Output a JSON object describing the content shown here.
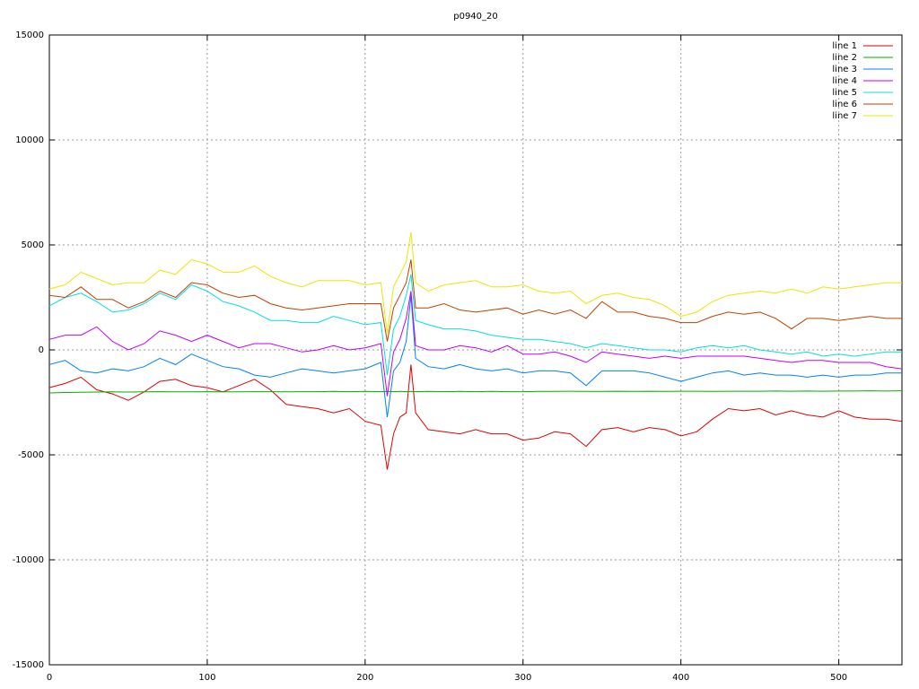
{
  "chart_data": {
    "type": "line",
    "title": "p0940_20",
    "x": [
      0,
      10,
      20,
      30,
      40,
      50,
      60,
      70,
      80,
      90,
      100,
      110,
      120,
      130,
      140,
      150,
      160,
      170,
      180,
      190,
      200,
      210,
      214,
      218,
      222,
      226,
      229,
      232,
      240,
      250,
      260,
      270,
      280,
      290,
      300,
      310,
      320,
      330,
      340,
      350,
      360,
      370,
      380,
      390,
      400,
      410,
      420,
      430,
      440,
      450,
      460,
      470,
      480,
      490,
      500,
      510,
      520,
      530,
      540
    ],
    "xlim": [
      0,
      540
    ],
    "xticks": [
      0,
      100,
      200,
      300,
      400,
      500
    ],
    "ylim": [
      -15000,
      15000
    ],
    "yticks": [
      -15000,
      -10000,
      -5000,
      0,
      5000,
      10000,
      15000
    ],
    "grid": true,
    "legend": "top-right",
    "series": [
      {
        "name": "line 1",
        "color": "#e00000",
        "values": [
          -1800,
          -1600,
          -1300,
          -1900,
          -2100,
          -2400,
          -2000,
          -1500,
          -1400,
          -1700,
          -1800,
          -2000,
          -1700,
          -1400,
          -1900,
          -2600,
          -2700,
          -2800,
          -3000,
          -2800,
          -3400,
          -3600,
          -5700,
          -4000,
          -3200,
          -3000,
          -700,
          -3000,
          -3800,
          -3900,
          -4000,
          -3800,
          -4000,
          -4000,
          -4300,
          -4200,
          -3900,
          -4000,
          -4600,
          -3800,
          -3700,
          -3900,
          -3700,
          -3800,
          -4100,
          -3900,
          -3300,
          -2800,
          -2900,
          -2800,
          -3100,
          -2900,
          -3100,
          -3200,
          -2900,
          -3200,
          -3300,
          -3300,
          -3400
        ]
      },
      {
        "name": "line 2",
        "color": "#00b000",
        "values": [
          -2050,
          -2030,
          -2020,
          -2010,
          -2000,
          -2010,
          -2000,
          -1990,
          -2000,
          -2000,
          -1990,
          -2000,
          -2000,
          -1990,
          -1990,
          -2000,
          -1990,
          -1990,
          -1980,
          -1990,
          -1980,
          -1990,
          -1980,
          -1990,
          -1980,
          -1990,
          -1980,
          -1990,
          -1980,
          -1990,
          -1980,
          -1990,
          -1980,
          -1990,
          -1990,
          -1980,
          -1980,
          -1970,
          -1980,
          -1980,
          -1970,
          -1980,
          -1970,
          -1980,
          -1970,
          -1970,
          -1980,
          -1970,
          -1970,
          -1970,
          -1960,
          -1970,
          -1960,
          -1970,
          -1960,
          -1960,
          -1950,
          -1960,
          -1950
        ]
      },
      {
        "name": "line 3",
        "color": "#0080ff",
        "values": [
          -700,
          -500,
          -1000,
          -1100,
          -900,
          -1000,
          -800,
          -400,
          -700,
          -200,
          -500,
          -800,
          -900,
          -1200,
          -1300,
          -1100,
          -900,
          -1000,
          -1100,
          -1000,
          -900,
          -600,
          -3200,
          -1000,
          -600,
          400,
          2600,
          -400,
          -800,
          -900,
          -700,
          -900,
          -1000,
          -900,
          -1100,
          -1000,
          -1000,
          -1100,
          -1700,
          -1000,
          -1000,
          -1000,
          -1100,
          -1300,
          -1500,
          -1300,
          -1100,
          -1000,
          -1200,
          -1100,
          -1200,
          -1200,
          -1300,
          -1200,
          -1300,
          -1200,
          -1200,
          -1100,
          -1100
        ]
      },
      {
        "name": "line 4",
        "color": "#c000ff",
        "values": [
          500,
          700,
          700,
          1100,
          400,
          0,
          300,
          900,
          700,
          400,
          700,
          400,
          100,
          300,
          300,
          100,
          -100,
          0,
          200,
          0,
          100,
          300,
          -2200,
          -100,
          500,
          1500,
          2800,
          200,
          0,
          0,
          200,
          100,
          -100,
          200,
          -200,
          -200,
          -100,
          -300,
          -600,
          -100,
          -200,
          -300,
          -400,
          -300,
          -400,
          -300,
          -300,
          -300,
          -300,
          -400,
          -500,
          -600,
          -500,
          -500,
          -600,
          -600,
          -600,
          -800,
          -900
        ]
      },
      {
        "name": "line 5",
        "color": "#00e0e0",
        "values": [
          2100,
          2500,
          2700,
          2300,
          1800,
          1900,
          2200,
          2700,
          2400,
          3100,
          2800,
          2300,
          2100,
          1800,
          1400,
          1400,
          1300,
          1300,
          1600,
          1400,
          1200,
          1300,
          -1200,
          1000,
          1600,
          2600,
          3600,
          1400,
          1200,
          1000,
          1000,
          900,
          700,
          600,
          500,
          500,
          400,
          300,
          100,
          300,
          200,
          100,
          0,
          0,
          -100,
          100,
          200,
          100,
          200,
          0,
          -100,
          -200,
          -100,
          -300,
          -200,
          -300,
          -200,
          -100,
          -100
        ]
      },
      {
        "name": "line 6",
        "color": "#c04000",
        "values": [
          2600,
          2500,
          3000,
          2400,
          2400,
          2000,
          2300,
          2800,
          2500,
          3200,
          3100,
          2700,
          2500,
          2600,
          2200,
          2000,
          1900,
          2000,
          2100,
          2200,
          2200,
          2200,
          400,
          2000,
          2600,
          3200,
          4300,
          2000,
          2000,
          2200,
          1900,
          1800,
          1900,
          2000,
          1700,
          1900,
          1700,
          1900,
          1500,
          2300,
          1800,
          1800,
          1600,
          1500,
          1300,
          1300,
          1600,
          1800,
          1700,
          1800,
          1500,
          1000,
          1500,
          1500,
          1400,
          1500,
          1600,
          1500,
          1500
        ]
      },
      {
        "name": "line 7",
        "color": "#e8e800",
        "values": [
          2900,
          3100,
          3700,
          3400,
          3100,
          3200,
          3200,
          3800,
          3600,
          4300,
          4100,
          3700,
          3700,
          4000,
          3500,
          3200,
          3000,
          3300,
          3300,
          3300,
          3100,
          3200,
          800,
          3000,
          3600,
          4200,
          5600,
          3200,
          2800,
          3100,
          3200,
          3300,
          3000,
          3000,
          3100,
          2800,
          2700,
          2800,
          2200,
          2600,
          2700,
          2500,
          2400,
          2100,
          1600,
          1800,
          2300,
          2600,
          2700,
          2800,
          2700,
          2900,
          2700,
          3000,
          2900,
          3000,
          3100,
          3200,
          3200
        ]
      }
    ]
  }
}
